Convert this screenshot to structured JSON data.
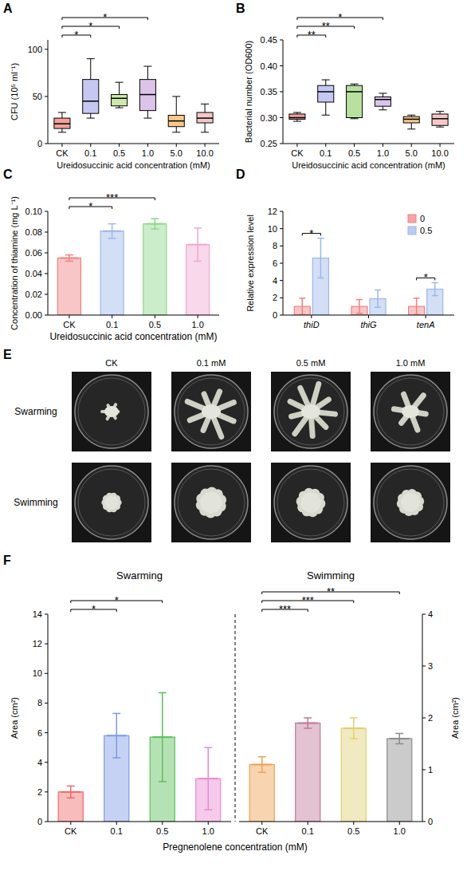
{
  "chart_data": [
    {
      "type": "box",
      "panel": "A",
      "y_label": "CFU (10⁵ ml⁻¹)",
      "x_label": "Ureidosuccinic acid concentration (mM)",
      "categories": [
        "CK",
        "0.1",
        "0.5",
        "1.0",
        "5.0",
        "10.0"
      ],
      "values": [
        [
          12,
          16,
          21,
          27,
          33
        ],
        [
          27,
          32,
          45,
          68,
          90
        ],
        [
          38,
          40,
          48,
          52,
          65
        ],
        [
          27,
          35,
          52,
          68,
          82
        ],
        [
          12,
          18,
          24,
          30,
          50
        ],
        [
          12,
          22,
          27,
          33,
          42
        ]
      ],
      "colors": [
        "#f4a09a",
        "#c5c8f2",
        "#cde8a8",
        "#dcc3e8",
        "#f7c98a",
        "#f5c8c8"
      ],
      "ylim": [
        0,
        110
      ],
      "yticks": [
        0,
        50,
        100
      ],
      "annotations": [
        {
          "from": 0,
          "to": 1,
          "label": "*"
        },
        {
          "from": 0,
          "to": 2,
          "label": "*"
        },
        {
          "from": 0,
          "to": 3,
          "label": "*"
        }
      ]
    },
    {
      "type": "box",
      "panel": "B",
      "y_label": "Bacterial number (OD600)",
      "x_label": "Ureidosuccinic acid concentration (mM)",
      "categories": [
        "CK",
        "0.1",
        "0.5",
        "1.0",
        "5.0",
        "10.0"
      ],
      "values": [
        [
          0.293,
          0.297,
          0.3,
          0.307,
          0.31
        ],
        [
          0.305,
          0.33,
          0.35,
          0.362,
          0.373
        ],
        [
          0.298,
          0.3,
          0.35,
          0.362,
          0.365
        ],
        [
          0.315,
          0.322,
          0.335,
          0.34,
          0.347
        ],
        [
          0.278,
          0.29,
          0.297,
          0.302,
          0.305
        ],
        [
          0.282,
          0.285,
          0.298,
          0.307,
          0.312
        ]
      ],
      "colors": [
        "#f4a09a",
        "#c5c8f2",
        "#b8e0a0",
        "#dcc3e8",
        "#f7c98a",
        "#f5c8c8"
      ],
      "ylim": [
        0.25,
        0.45
      ],
      "yticks": [
        0.25,
        {
          "value": 0.3,
          "label": "0.30"
        },
        0.35,
        {
          "value": 0.4,
          "label": "0.40"
        },
        0.45
      ],
      "annotations": [
        {
          "from": 0,
          "to": 1,
          "label": "**"
        },
        {
          "from": 0,
          "to": 2,
          "label": "**"
        },
        {
          "from": 0,
          "to": 3,
          "label": "*"
        }
      ]
    },
    {
      "type": "bar",
      "panel": "C",
      "y_label": "Concentration of thiamine (mg L⁻¹)",
      "x_label": "Ureidosuccinic acid concentration (mM)",
      "categories": [
        "CK",
        "0.1",
        "0.5",
        "1.0"
      ],
      "values": [
        0.055,
        0.081,
        0.088,
        0.068
      ],
      "errors": [
        0.003,
        0.007,
        0.005,
        0.016
      ],
      "colors": [
        "#f08080",
        "#9db8e8",
        "#8fd68a",
        "#f0a8d0"
      ],
      "ylim": [
        0,
        0.1
      ],
      "yticks": [
        {
          "value": 0,
          "label": "0.00"
        },
        0.02,
        0.04,
        0.06,
        0.08,
        {
          "value": 0.1,
          "label": "0.10"
        }
      ],
      "annotations": [
        {
          "from": 0,
          "to": 1,
          "label": "*"
        },
        {
          "from": 0,
          "to": 2,
          "label": "***"
        }
      ]
    },
    {
      "type": "grouped_bar",
      "panel": "D",
      "y_label": "Relative expression level",
      "categories": [
        "thiD",
        "thiG",
        "tenA"
      ],
      "series": [
        {
          "name": "0",
          "color": "#f08080",
          "values": [
            1,
            1,
            1
          ],
          "errors": [
            0.95,
            0.8,
            0.95
          ]
        },
        {
          "name": "0.5",
          "color": "#9db8e8",
          "values": [
            6.6,
            1.9,
            3.0
          ],
          "errors": [
            2.3,
            1.0,
            0.75
          ]
        }
      ],
      "ylim": [
        0,
        12
      ],
      "yticks": [
        0,
        2,
        4,
        6,
        8,
        10,
        12
      ],
      "legend": "top-right",
      "annotations": [
        {
          "category": 0,
          "label": "*"
        },
        {
          "category": 2,
          "label": "*"
        }
      ]
    },
    {
      "type": "bar",
      "panel": "F",
      "title": "Swarming",
      "y_label": "Area (cm²)",
      "x_label": "Pregnenolene concentration (mM)",
      "categories": [
        "CK",
        "0.1",
        "0.5",
        "1.0"
      ],
      "values": [
        2.0,
        5.8,
        5.7,
        2.9
      ],
      "errors": [
        0.4,
        1.5,
        3.0,
        2.1
      ],
      "colors": [
        "#f06a6a",
        "#7f9be6",
        "#5cbf5c",
        "#e88ad0"
      ],
      "ylim": [
        0,
        14
      ],
      "yticks": [
        0,
        2,
        4,
        6,
        8,
        10,
        12,
        14
      ],
      "annotations": [
        {
          "from": 0,
          "to": 1,
          "label": "*"
        },
        {
          "from": 0,
          "to": 2,
          "label": "*"
        }
      ]
    },
    {
      "type": "bar",
      "title": "Swimming",
      "y_label": "Area (cm²)",
      "categories": [
        "CK",
        "0.1",
        "0.5",
        "1.0"
      ],
      "values": [
        1.1,
        1.9,
        1.8,
        1.6
      ],
      "errors": [
        0.15,
        0.1,
        0.2,
        0.1
      ],
      "colors": [
        "#f0a050",
        "#c07898",
        "#e0cf70",
        "#8c8c8c"
      ],
      "ylim": [
        0,
        4
      ],
      "yticks": [
        0,
        1,
        2,
        3,
        4
      ],
      "annotations": [
        {
          "from": 0,
          "to": 1,
          "label": "***"
        },
        {
          "from": 0,
          "to": 2,
          "label": "***"
        },
        {
          "from": 0,
          "to": 3,
          "label": "**"
        }
      ]
    }
  ],
  "panel_e": {
    "panel": "E",
    "columns": [
      "CK",
      "0.1 mM",
      "0.5 mM",
      "1.0 mM"
    ],
    "rows": [
      "Swarming",
      "Swimming"
    ]
  }
}
